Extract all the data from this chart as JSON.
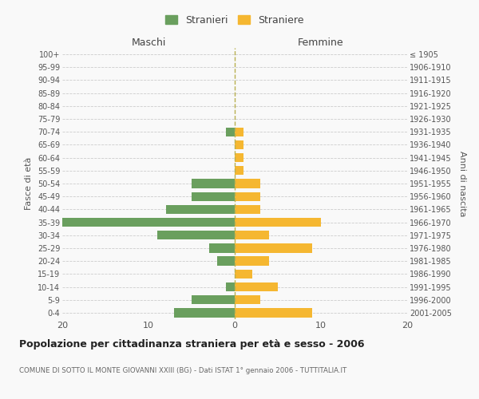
{
  "age_groups": [
    "100+",
    "95-99",
    "90-94",
    "85-89",
    "80-84",
    "75-79",
    "70-74",
    "65-69",
    "60-64",
    "55-59",
    "50-54",
    "45-49",
    "40-44",
    "35-39",
    "30-34",
    "25-29",
    "20-24",
    "15-19",
    "10-14",
    "5-9",
    "0-4"
  ],
  "birth_years": [
    "≤ 1905",
    "1906-1910",
    "1911-1915",
    "1916-1920",
    "1921-1925",
    "1926-1930",
    "1931-1935",
    "1936-1940",
    "1941-1945",
    "1946-1950",
    "1951-1955",
    "1956-1960",
    "1961-1965",
    "1966-1970",
    "1971-1975",
    "1976-1980",
    "1981-1985",
    "1986-1990",
    "1991-1995",
    "1996-2000",
    "2001-2005"
  ],
  "males": [
    0,
    0,
    0,
    0,
    0,
    0,
    1,
    0,
    0,
    0,
    5,
    5,
    8,
    20,
    9,
    3,
    2,
    0,
    1,
    5,
    7
  ],
  "females": [
    0,
    0,
    0,
    0,
    0,
    0,
    1,
    1,
    1,
    1,
    3,
    3,
    3,
    10,
    4,
    9,
    4,
    2,
    5,
    3,
    9
  ],
  "male_color": "#6a9f5e",
  "female_color": "#f5b731",
  "background_color": "#f9f9f9",
  "grid_color": "#cccccc",
  "title": "Popolazione per cittadinanza straniera per età e sesso - 2006",
  "subtitle": "COMUNE DI SOTTO IL MONTE GIOVANNI XXIII (BG) - Dati ISTAT 1° gennaio 2006 - TUTTITALIA.IT",
  "xlabel_left": "Maschi",
  "xlabel_right": "Femmine",
  "ylabel_left": "Fasce di età",
  "ylabel_right": "Anni di nascita",
  "xlim": 20,
  "legend_labels": [
    "Stranieri",
    "Straniere"
  ]
}
